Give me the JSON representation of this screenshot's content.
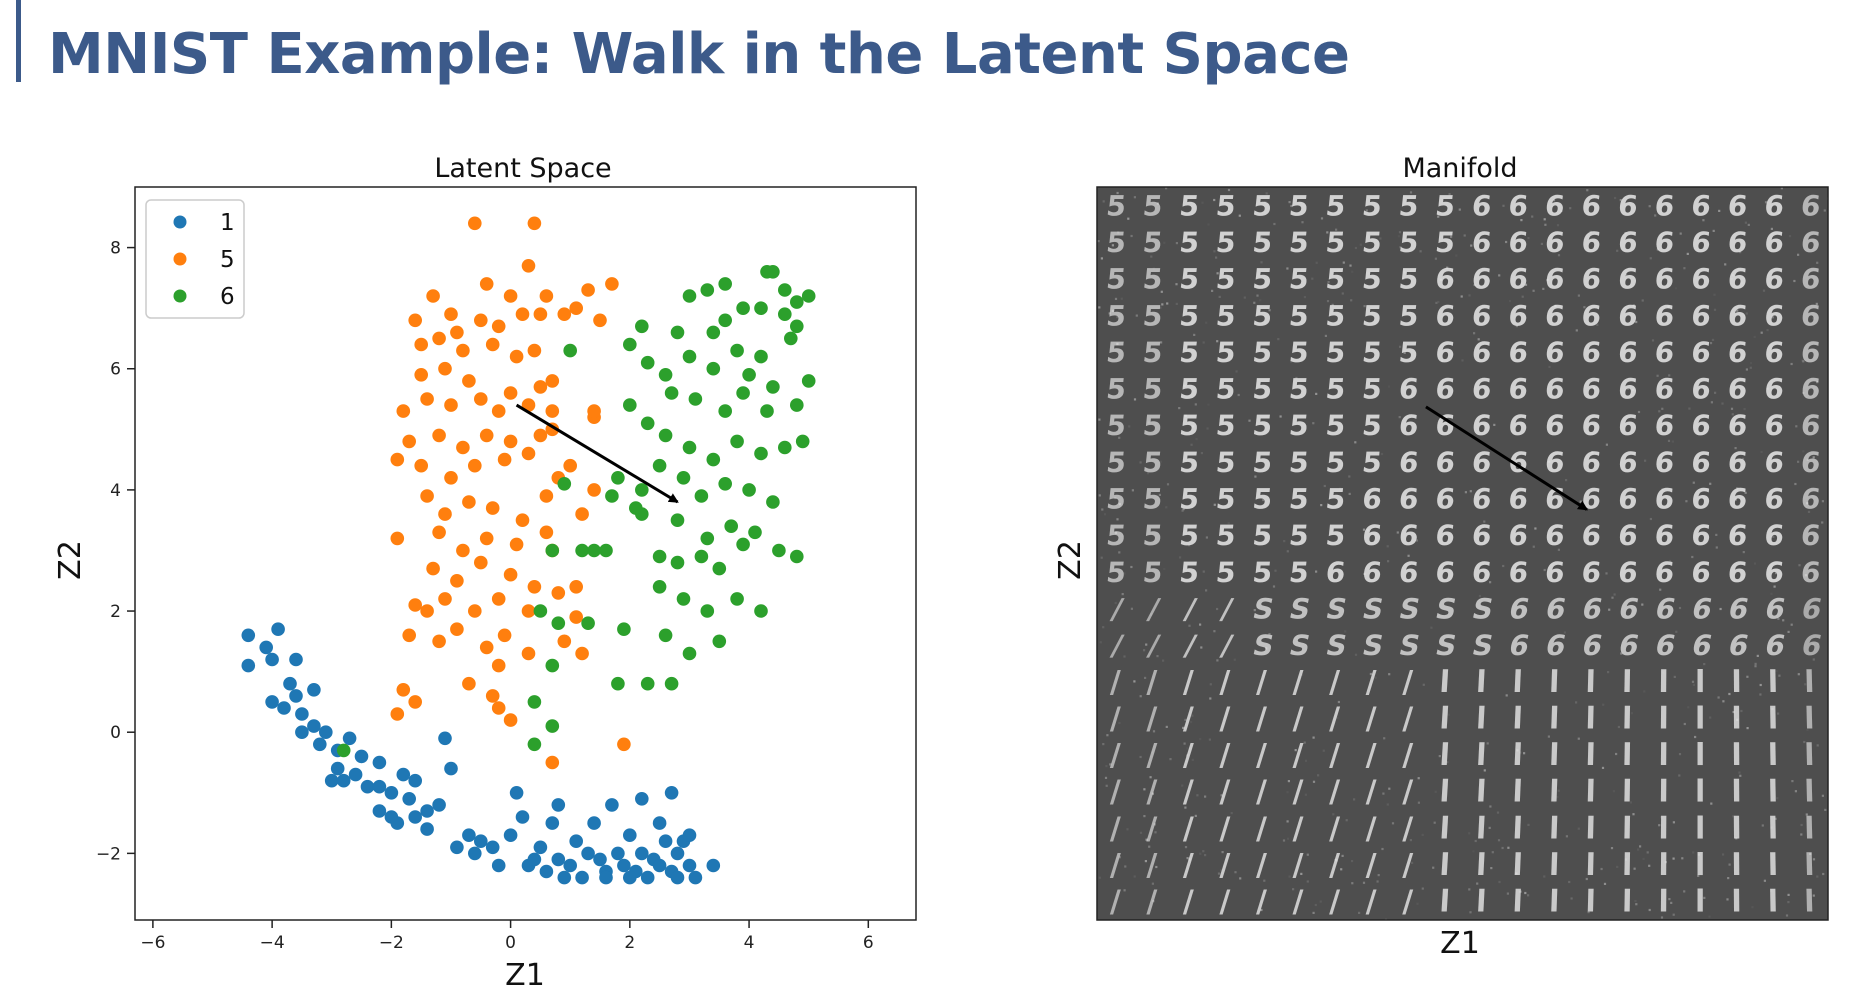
{
  "slide": {
    "title": "MNIST Example: Walk in the Latent Space",
    "title_color": "#3c5a8a",
    "accent_color": "#3c5a8a"
  },
  "chart_data": [
    {
      "type": "scatter",
      "title": "Latent Space",
      "xlabel": "Z1",
      "ylabel": "Z2",
      "xlim": [
        -6.3,
        6.8
      ],
      "ylim": [
        -3.1,
        9.0
      ],
      "xticks": [
        -6,
        -4,
        -2,
        0,
        2,
        4,
        6
      ],
      "yticks": [
        -2,
        0,
        2,
        4,
        6,
        8
      ],
      "grid": false,
      "legend": "top-left",
      "series": [
        {
          "name": "1",
          "color": "#1f77b4",
          "points": [
            [
              -4.4,
              1.6
            ],
            [
              -4.4,
              1.1
            ],
            [
              -4.1,
              1.4
            ],
            [
              -3.9,
              1.7
            ],
            [
              -4.0,
              1.2
            ],
            [
              -3.6,
              1.2
            ],
            [
              -3.7,
              0.8
            ],
            [
              -3.6,
              0.6
            ],
            [
              -3.3,
              0.7
            ],
            [
              -4.0,
              0.5
            ],
            [
              -3.8,
              0.4
            ],
            [
              -3.5,
              0.3
            ],
            [
              -3.3,
              0.1
            ],
            [
              -3.1,
              0.0
            ],
            [
              -3.5,
              0.0
            ],
            [
              -3.2,
              -0.2
            ],
            [
              -2.9,
              -0.3
            ],
            [
              -2.7,
              -0.1
            ],
            [
              -2.5,
              -0.4
            ],
            [
              -2.9,
              -0.6
            ],
            [
              -3.0,
              -0.8
            ],
            [
              -2.8,
              -0.8
            ],
            [
              -2.6,
              -0.7
            ],
            [
              -2.4,
              -0.9
            ],
            [
              -2.2,
              -0.5
            ],
            [
              -2.2,
              -0.9
            ],
            [
              -2.0,
              -1.0
            ],
            [
              -1.8,
              -0.7
            ],
            [
              -1.7,
              -1.1
            ],
            [
              -1.6,
              -0.8
            ],
            [
              -2.2,
              -1.3
            ],
            [
              -2.0,
              -1.4
            ],
            [
              -1.9,
              -1.5
            ],
            [
              -1.6,
              -1.4
            ],
            [
              -1.4,
              -1.3
            ],
            [
              -1.4,
              -1.6
            ],
            [
              -1.2,
              -1.2
            ],
            [
              -1.0,
              -0.6
            ],
            [
              -1.1,
              -0.1
            ],
            [
              -0.9,
              -1.9
            ],
            [
              -0.7,
              -1.7
            ],
            [
              -0.6,
              -2.0
            ],
            [
              -0.5,
              -1.8
            ],
            [
              -0.3,
              -1.9
            ],
            [
              -0.2,
              -2.2
            ],
            [
              0.0,
              -1.7
            ],
            [
              0.1,
              -1.0
            ],
            [
              0.2,
              -1.4
            ],
            [
              0.3,
              -2.2
            ],
            [
              0.4,
              -2.1
            ],
            [
              0.5,
              -1.9
            ],
            [
              0.6,
              -2.3
            ],
            [
              0.7,
              -1.5
            ],
            [
              0.8,
              -2.1
            ],
            [
              0.8,
              -1.2
            ],
            [
              1.0,
              -2.2
            ],
            [
              1.1,
              -1.8
            ],
            [
              1.2,
              -2.4
            ],
            [
              1.3,
              -2.0
            ],
            [
              1.4,
              -1.5
            ],
            [
              1.5,
              -2.1
            ],
            [
              1.6,
              -2.3
            ],
            [
              1.7,
              -1.2
            ],
            [
              1.8,
              -2.0
            ],
            [
              1.9,
              -2.2
            ],
            [
              2.0,
              -1.7
            ],
            [
              2.1,
              -2.3
            ],
            [
              2.2,
              -2.0
            ],
            [
              2.2,
              -1.1
            ],
            [
              2.3,
              -2.4
            ],
            [
              2.4,
              -2.1
            ],
            [
              2.5,
              -1.5
            ],
            [
              2.5,
              -2.2
            ],
            [
              2.6,
              -1.8
            ],
            [
              2.7,
              -2.3
            ],
            [
              2.7,
              -1.0
            ],
            [
              2.8,
              -2.0
            ],
            [
              2.8,
              -2.4
            ],
            [
              2.9,
              -1.8
            ],
            [
              3.0,
              -2.2
            ],
            [
              3.0,
              -1.7
            ],
            [
              3.1,
              -2.4
            ],
            [
              3.4,
              -2.2
            ],
            [
              1.6,
              -2.4
            ],
            [
              0.9,
              -2.4
            ],
            [
              2.0,
              -2.4
            ]
          ]
        },
        {
          "name": "5",
          "color": "#ff7f0e",
          "points": [
            [
              -0.6,
              8.4
            ],
            [
              0.4,
              8.4
            ],
            [
              -1.3,
              7.2
            ],
            [
              -1.6,
              6.8
            ],
            [
              -0.4,
              7.4
            ],
            [
              0.0,
              7.2
            ],
            [
              0.3,
              7.7
            ],
            [
              0.6,
              7.2
            ],
            [
              1.3,
              7.3
            ],
            [
              1.7,
              7.4
            ],
            [
              1.1,
              7.0
            ],
            [
              0.5,
              6.9
            ],
            [
              -1.0,
              6.9
            ],
            [
              -0.5,
              6.8
            ],
            [
              -0.2,
              6.7
            ],
            [
              0.2,
              6.9
            ],
            [
              0.9,
              6.9
            ],
            [
              1.5,
              6.8
            ],
            [
              -1.5,
              6.4
            ],
            [
              -1.2,
              6.5
            ],
            [
              -0.8,
              6.3
            ],
            [
              -0.3,
              6.4
            ],
            [
              0.1,
              6.2
            ],
            [
              0.4,
              6.3
            ],
            [
              -1.5,
              5.9
            ],
            [
              -1.1,
              6.0
            ],
            [
              -0.7,
              5.8
            ],
            [
              0.0,
              5.6
            ],
            [
              0.5,
              5.7
            ],
            [
              0.7,
              5.8
            ],
            [
              -1.8,
              5.3
            ],
            [
              -1.4,
              5.5
            ],
            [
              -1.0,
              5.4
            ],
            [
              -0.5,
              5.5
            ],
            [
              -0.2,
              5.3
            ],
            [
              0.3,
              5.4
            ],
            [
              0.7,
              5.3
            ],
            [
              1.4,
              5.2
            ],
            [
              -1.7,
              4.8
            ],
            [
              -1.2,
              4.9
            ],
            [
              -0.8,
              4.7
            ],
            [
              -0.4,
              4.9
            ],
            [
              0.0,
              4.8
            ],
            [
              0.5,
              4.9
            ],
            [
              -1.9,
              4.5
            ],
            [
              -1.5,
              4.4
            ],
            [
              -1.0,
              4.2
            ],
            [
              -0.6,
              4.4
            ],
            [
              -0.1,
              4.5
            ],
            [
              0.3,
              4.6
            ],
            [
              0.8,
              4.2
            ],
            [
              -1.4,
              3.9
            ],
            [
              -1.1,
              3.6
            ],
            [
              -0.7,
              3.8
            ],
            [
              -0.3,
              3.7
            ],
            [
              0.2,
              3.5
            ],
            [
              0.6,
              3.9
            ],
            [
              1.2,
              3.6
            ],
            [
              -1.9,
              3.2
            ],
            [
              -1.2,
              3.3
            ],
            [
              -0.8,
              3.0
            ],
            [
              -0.4,
              3.2
            ],
            [
              0.1,
              3.1
            ],
            [
              0.7,
              3.0
            ],
            [
              -1.3,
              2.7
            ],
            [
              -0.9,
              2.5
            ],
            [
              -0.5,
              2.8
            ],
            [
              0.0,
              2.6
            ],
            [
              0.4,
              2.4
            ],
            [
              1.1,
              2.4
            ],
            [
              -1.6,
              2.1
            ],
            [
              -1.1,
              2.2
            ],
            [
              -0.6,
              2.0
            ],
            [
              -0.2,
              2.2
            ],
            [
              0.3,
              2.0
            ],
            [
              0.8,
              2.3
            ],
            [
              -1.7,
              1.6
            ],
            [
              -1.2,
              1.5
            ],
            [
              -0.9,
              1.7
            ],
            [
              -0.4,
              1.4
            ],
            [
              -0.1,
              1.6
            ],
            [
              0.3,
              1.3
            ],
            [
              1.2,
              1.3
            ],
            [
              -1.8,
              0.7
            ],
            [
              -1.6,
              0.5
            ],
            [
              -0.7,
              0.8
            ],
            [
              -0.3,
              0.6
            ],
            [
              -0.2,
              0.4
            ],
            [
              0.0,
              0.2
            ],
            [
              -1.9,
              0.3
            ],
            [
              0.7,
              -0.5
            ],
            [
              1.9,
              -0.2
            ],
            [
              1.4,
              5.3
            ],
            [
              1.0,
              4.4
            ],
            [
              1.4,
              4.0
            ],
            [
              0.6,
              3.3
            ],
            [
              -0.2,
              1.1
            ],
            [
              0.9,
              1.5
            ],
            [
              1.1,
              1.9
            ],
            [
              -1.4,
              2.0
            ],
            [
              -0.9,
              6.6
            ],
            [
              0.7,
              5.0
            ]
          ]
        },
        {
          "name": "6",
          "color": "#2ca02c",
          "points": [
            [
              4.3,
              7.6
            ],
            [
              4.4,
              7.6
            ],
            [
              4.6,
              7.3
            ],
            [
              4.8,
              7.1
            ],
            [
              5.0,
              7.2
            ],
            [
              3.6,
              7.4
            ],
            [
              3.3,
              7.3
            ],
            [
              3.0,
              7.2
            ],
            [
              3.9,
              7.0
            ],
            [
              3.6,
              6.8
            ],
            [
              4.2,
              7.0
            ],
            [
              4.6,
              6.9
            ],
            [
              4.8,
              6.7
            ],
            [
              2.8,
              6.6
            ],
            [
              2.2,
              6.7
            ],
            [
              2.0,
              6.4
            ],
            [
              2.3,
              6.1
            ],
            [
              1.0,
              6.3
            ],
            [
              3.8,
              6.3
            ],
            [
              4.2,
              6.2
            ],
            [
              4.7,
              6.5
            ],
            [
              3.4,
              6.0
            ],
            [
              3.0,
              6.2
            ],
            [
              2.6,
              5.9
            ],
            [
              4.0,
              5.9
            ],
            [
              4.4,
              5.7
            ],
            [
              5.0,
              5.8
            ],
            [
              3.1,
              5.5
            ],
            [
              2.7,
              5.6
            ],
            [
              3.6,
              5.3
            ],
            [
              3.9,
              5.6
            ],
            [
              4.3,
              5.3
            ],
            [
              4.8,
              5.4
            ],
            [
              2.0,
              5.4
            ],
            [
              2.3,
              5.1
            ],
            [
              2.6,
              4.9
            ],
            [
              3.0,
              4.7
            ],
            [
              3.4,
              4.5
            ],
            [
              3.8,
              4.8
            ],
            [
              4.2,
              4.6
            ],
            [
              4.6,
              4.7
            ],
            [
              4.9,
              4.8
            ],
            [
              1.8,
              4.2
            ],
            [
              2.2,
              4.0
            ],
            [
              2.5,
              4.4
            ],
            [
              2.9,
              4.2
            ],
            [
              3.2,
              3.9
            ],
            [
              3.6,
              4.1
            ],
            [
              4.0,
              4.0
            ],
            [
              4.4,
              3.8
            ],
            [
              0.9,
              4.1
            ],
            [
              1.7,
              3.9
            ],
            [
              2.1,
              3.7
            ],
            [
              2.8,
              3.5
            ],
            [
              3.3,
              3.2
            ],
            [
              3.7,
              3.4
            ],
            [
              4.1,
              3.3
            ],
            [
              4.5,
              3.0
            ],
            [
              4.8,
              2.9
            ],
            [
              0.7,
              3.0
            ],
            [
              1.2,
              3.0
            ],
            [
              1.6,
              3.0
            ],
            [
              2.5,
              2.9
            ],
            [
              2.8,
              2.8
            ],
            [
              3.2,
              2.9
            ],
            [
              3.5,
              2.7
            ],
            [
              3.9,
              3.1
            ],
            [
              2.5,
              2.4
            ],
            [
              2.9,
              2.2
            ],
            [
              3.3,
              2.0
            ],
            [
              3.8,
              2.2
            ],
            [
              4.2,
              2.0
            ],
            [
              0.5,
              2.0
            ],
            [
              0.8,
              1.8
            ],
            [
              1.3,
              1.8
            ],
            [
              1.9,
              1.7
            ],
            [
              2.6,
              1.6
            ],
            [
              3.0,
              1.3
            ],
            [
              3.5,
              1.5
            ],
            [
              2.3,
              0.8
            ],
            [
              1.8,
              0.8
            ],
            [
              0.7,
              1.1
            ],
            [
              0.4,
              0.5
            ],
            [
              0.7,
              0.1
            ],
            [
              0.4,
              -0.2
            ],
            [
              -2.8,
              -0.3
            ],
            [
              2.7,
              0.8
            ],
            [
              3.4,
              6.6
            ],
            [
              1.4,
              3.0
            ],
            [
              2.2,
              3.6
            ]
          ]
        }
      ],
      "arrow": {
        "from": [
          0.1,
          5.4
        ],
        "to": [
          2.8,
          3.8
        ]
      }
    },
    {
      "type": "heatmap",
      "title": "Manifold",
      "xlabel": "Z1",
      "ylabel": "Z2",
      "grid_size": 20,
      "arrow": {
        "from": [
          0.45,
          0.3
        ],
        "to": [
          0.67,
          0.44
        ]
      }
    }
  ]
}
